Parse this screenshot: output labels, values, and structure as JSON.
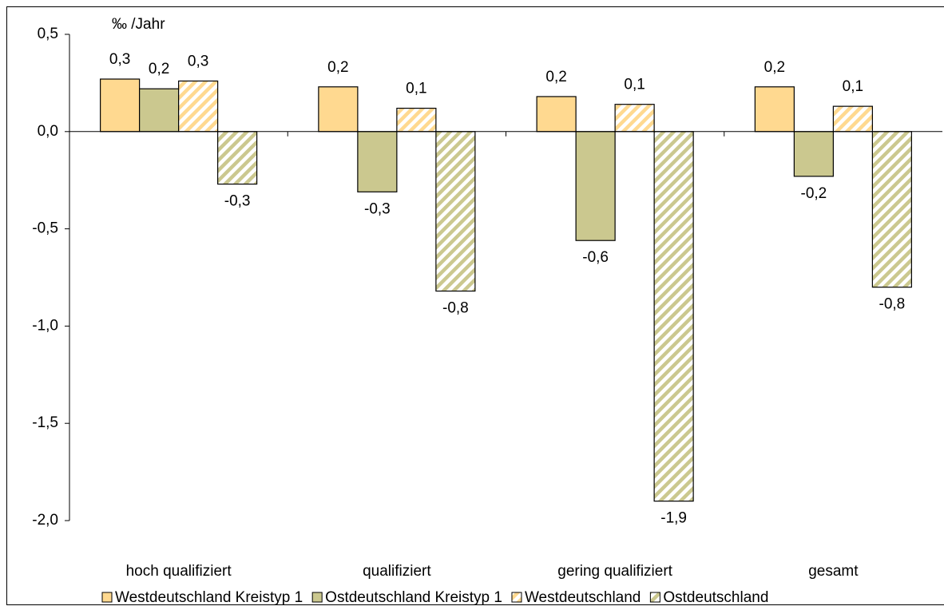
{
  "chart_data": {
    "type": "bar",
    "y_axis_label": "‰ /Jahr",
    "categories": [
      "hoch qualifiziert",
      "qualifiziert",
      "gering qualifiziert",
      "gesamt"
    ],
    "series": [
      {
        "name": "Westdeutschland Kreistyp 1",
        "color": "#ffd990",
        "hatch": false,
        "values": [
          0.27,
          0.23,
          0.18,
          0.23
        ],
        "value_labels": [
          "0,3",
          "0,2",
          "0,2",
          "0,2"
        ]
      },
      {
        "name": "Ostdeutschland Kreistyp 1",
        "color": "#cbc88f",
        "hatch": false,
        "values": [
          0.22,
          -0.31,
          -0.56,
          -0.23
        ],
        "value_labels": [
          "0,2",
          "-0,3",
          "-0,6",
          "-0,2"
        ]
      },
      {
        "name": "Westdeutschland",
        "color": "#ffd990",
        "hatch": true,
        "values": [
          0.26,
          0.12,
          0.14,
          0.13
        ],
        "value_labels": [
          "0,3",
          "0,1",
          "0,1",
          "0,1"
        ]
      },
      {
        "name": "Ostdeutschland",
        "color": "#cbc88f",
        "hatch": true,
        "values": [
          -0.27,
          -0.82,
          -1.9,
          -0.8
        ],
        "value_labels": [
          "-0,3",
          "-0,8",
          "-1,9",
          "-0,8"
        ]
      }
    ],
    "ylim": [
      -2.0,
      0.5
    ],
    "yticks": [
      {
        "value": 0.5,
        "label": "0,5"
      },
      {
        "value": 0.0,
        "label": "0,0"
      },
      {
        "value": -0.5,
        "label": "-0,5"
      },
      {
        "value": -1.0,
        "label": "-1,0"
      },
      {
        "value": -1.5,
        "label": "-1,5"
      },
      {
        "value": -2.0,
        "label": "-2,0"
      }
    ],
    "grid": false,
    "legend": "bottom"
  }
}
